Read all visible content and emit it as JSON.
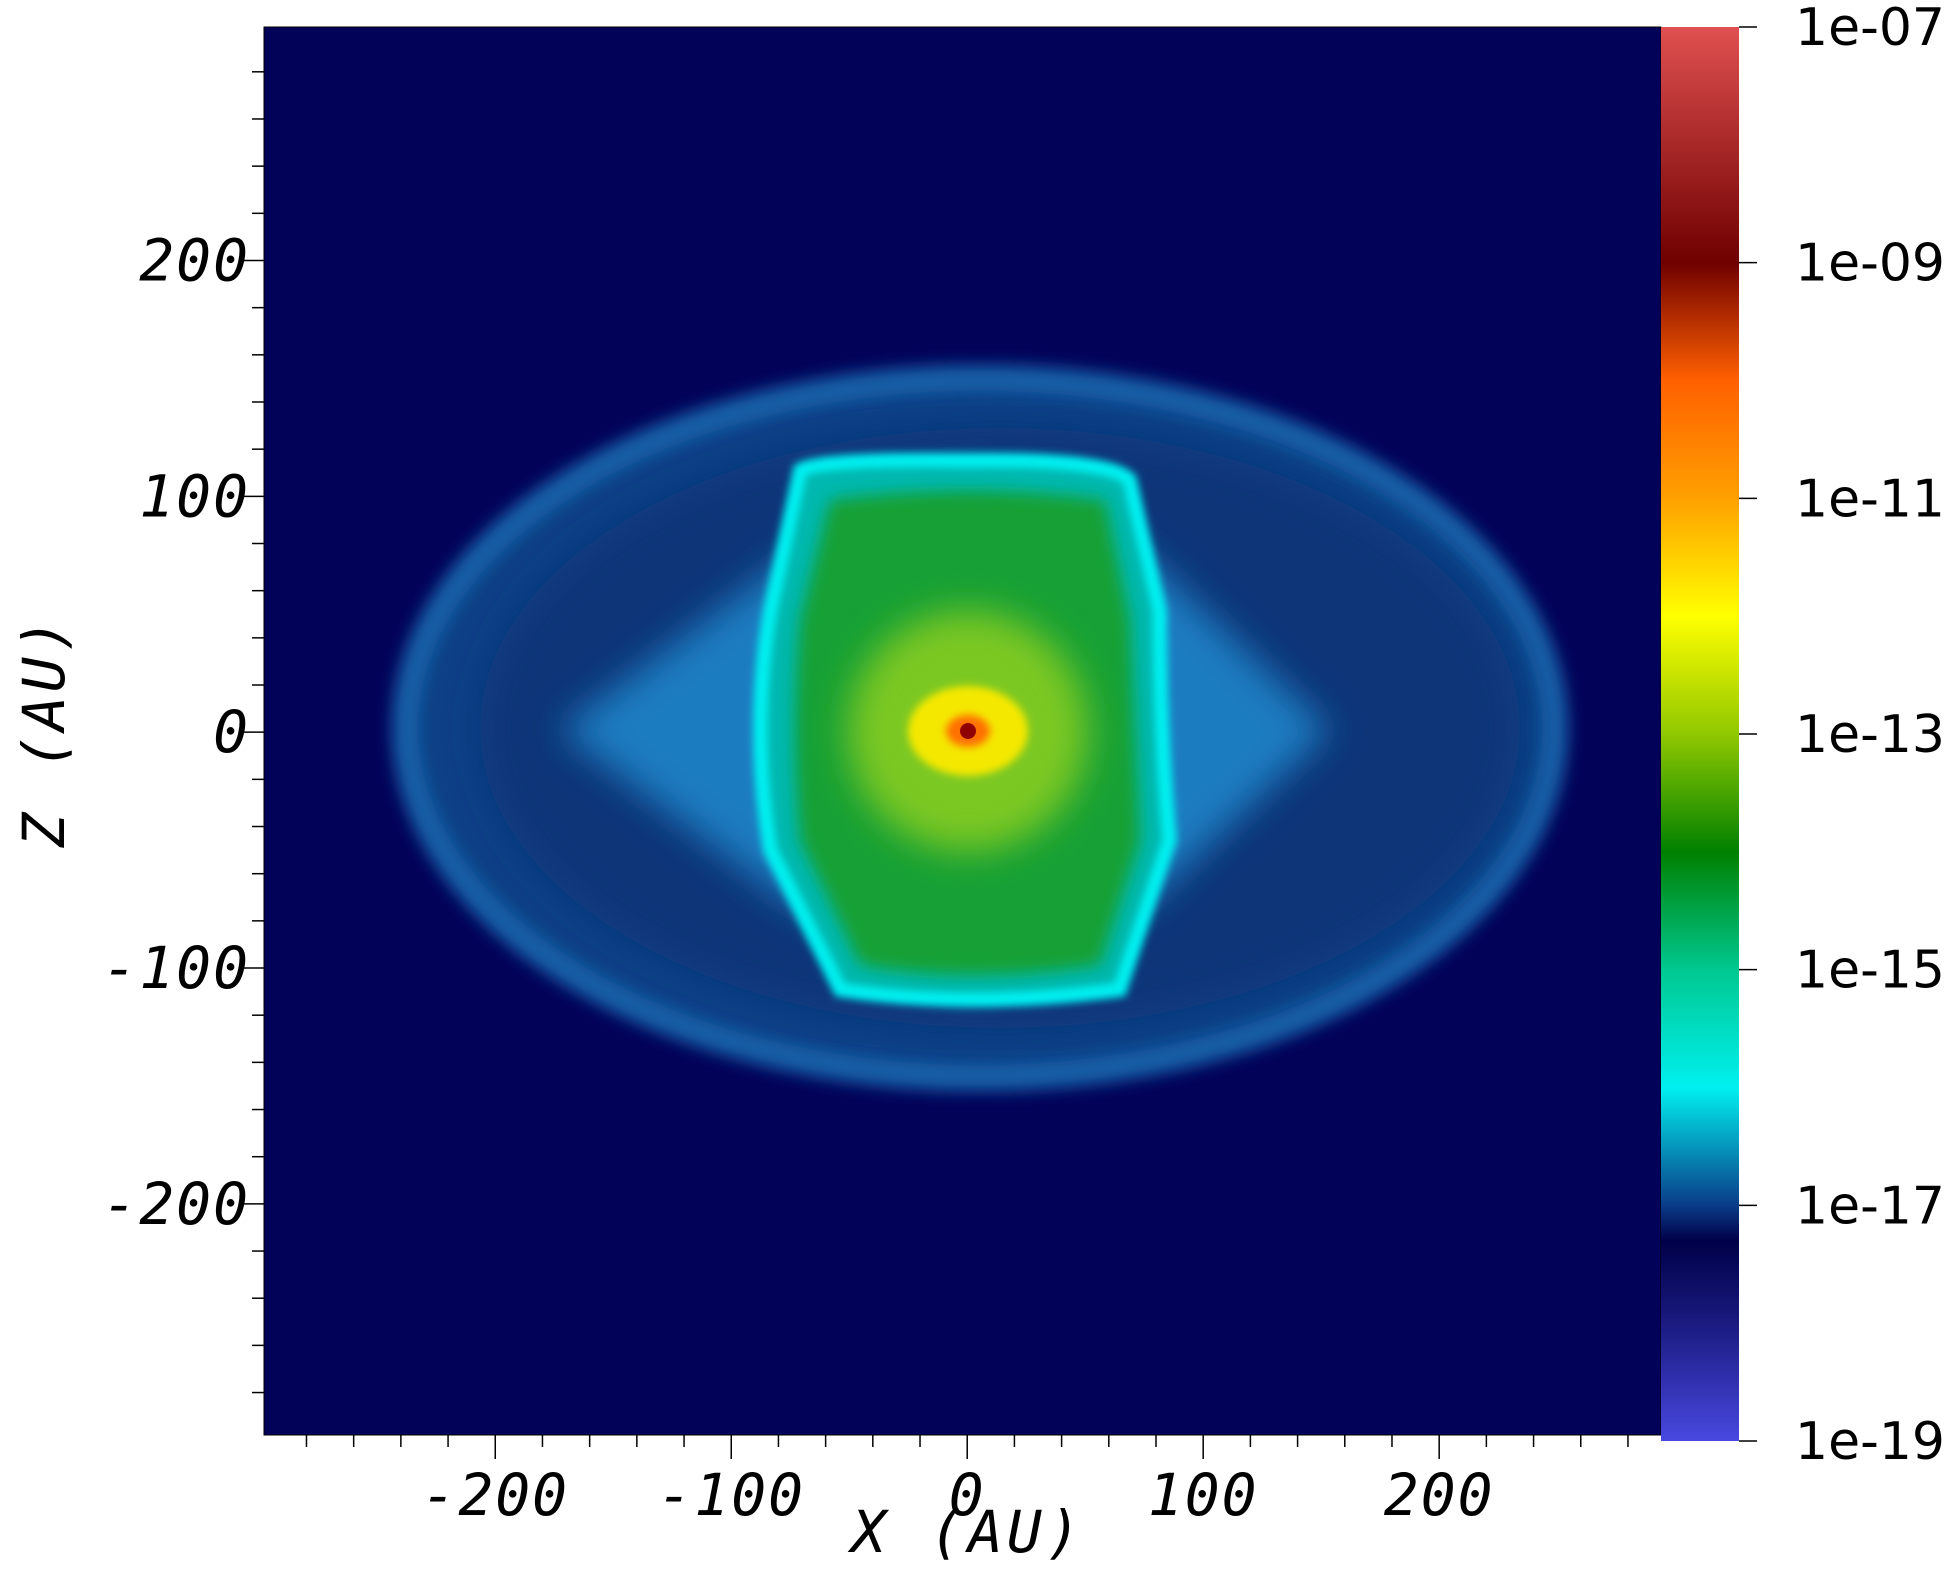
{
  "chart_data": {
    "type": "heatmap",
    "x_label": "X (AU)",
    "y_label": "Z (AU)",
    "xlim": [
      -298,
      294
    ],
    "ylim": [
      -298,
      299
    ],
    "xticks": [
      -200,
      -100,
      0,
      100,
      200
    ],
    "yticks": [
      -200,
      -100,
      0,
      100,
      200
    ],
    "xminorticks": [
      -280,
      -260,
      -240,
      -220,
      -180,
      -160,
      -140,
      -120,
      -80,
      -60,
      -40,
      -20,
      20,
      40,
      60,
      80,
      120,
      140,
      160,
      180,
      220,
      240,
      260,
      280
    ],
    "yminorticks": [
      -280,
      -260,
      -240,
      -220,
      -180,
      -160,
      -140,
      -120,
      -80,
      -60,
      -40,
      -20,
      20,
      40,
      60,
      80,
      120,
      140,
      160,
      180,
      220,
      240,
      260,
      280
    ],
    "colorbar": {
      "scale": "log",
      "lim": [
        1e-19,
        1e-07
      ],
      "ticks": [
        {
          "value": 1e-19,
          "label": "1e-19"
        },
        {
          "value": 1e-17,
          "label": "1e-17"
        },
        {
          "value": 1e-15,
          "label": "1e-15"
        },
        {
          "value": 1e-13,
          "label": "1e-13"
        },
        {
          "value": 1e-11,
          "label": "1e-11"
        },
        {
          "value": 1e-09,
          "label": "1e-09"
        },
        {
          "value": 1e-07,
          "label": "1e-07"
        }
      ],
      "colorscale": [
        {
          "value": 1e-19,
          "color": "#4848e0"
        },
        {
          "value": 1e-18,
          "color": "#1a1a80"
        },
        {
          "value": 5e-18,
          "color": "#000048"
        },
        {
          "value": 1e-17,
          "color": "#0a3c88"
        },
        {
          "value": 1e-16,
          "color": "#00f0f0"
        },
        {
          "value": 1e-15,
          "color": "#00c890"
        },
        {
          "value": 1e-14,
          "color": "#008000"
        },
        {
          "value": 1e-13,
          "color": "#90c800"
        },
        {
          "value": 1e-12,
          "color": "#ffff00"
        },
        {
          "value": 1e-11,
          "color": "#ffa000"
        },
        {
          "value": 1e-10,
          "color": "#ff6000"
        },
        {
          "value": 1e-09,
          "color": "#700000"
        },
        {
          "value": 1e-07,
          "color": "#e05050"
        }
      ]
    }
  }
}
